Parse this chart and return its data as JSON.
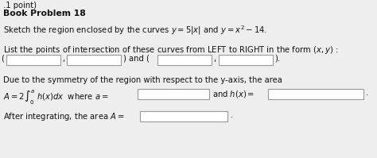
{
  "title_line1": ".1 point)",
  "title_line2": "Book Problem 18",
  "line1": "Sketch the region enclosed by the curves $y = 5|x|$ and $y = x^2 - 14$.",
  "line2": "List the points of intersection of these curves from LEFT to RIGHT in the form $(x, y)$ :",
  "line4": "Due to the symmetry of the region with respect to the y-axis, the area",
  "bg_color": "#eeeeee",
  "box_color": "#ffffff",
  "box_edge": "#999999",
  "text_color": "#111111",
  "font_size": 7.2,
  "bold_size": 7.8
}
